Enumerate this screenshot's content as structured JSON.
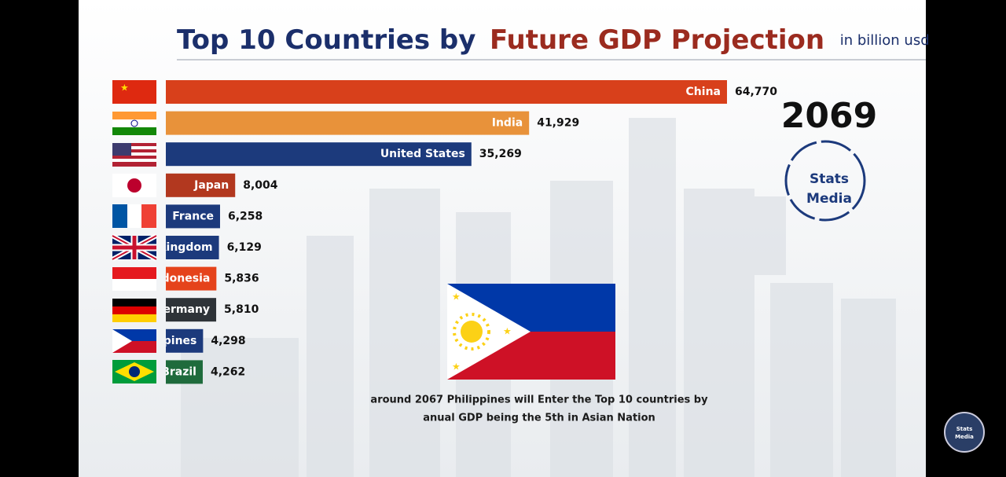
{
  "chart_data": {
    "type": "bar",
    "title": "Top 10 Countries by",
    "title_highlight": "Future GDP Projection",
    "unit": "in billion usd",
    "year": "2069",
    "logo": [
      "Stats",
      "Media"
    ],
    "categories": [
      "China",
      "India",
      "United States",
      "Japan",
      "France",
      "United Kingdom",
      "Indonesia",
      "Germany",
      "Philippines",
      "Brazil"
    ],
    "values": [
      64770,
      41929,
      35269,
      8004,
      6258,
      6129,
      5836,
      5810,
      4298,
      4262
    ],
    "value_labels": [
      "64,770",
      "41,929",
      "35,269",
      "8,004",
      "6,258",
      "6,129",
      "5,836",
      "5,810",
      "4,298",
      "4,262"
    ],
    "colors": [
      "#d8401b",
      "#e8923a",
      "#1c3a7c",
      "#b2381f",
      "#1c3a7c",
      "#1c3a7c",
      "#e5431b",
      "#2e3338",
      "#1c3a7c",
      "#1f6b3c"
    ],
    "annotation": [
      "around 2067 Philippines will Enter the Top 10 countries by",
      "anual GDP being the 5th in Asian Nation"
    ]
  }
}
